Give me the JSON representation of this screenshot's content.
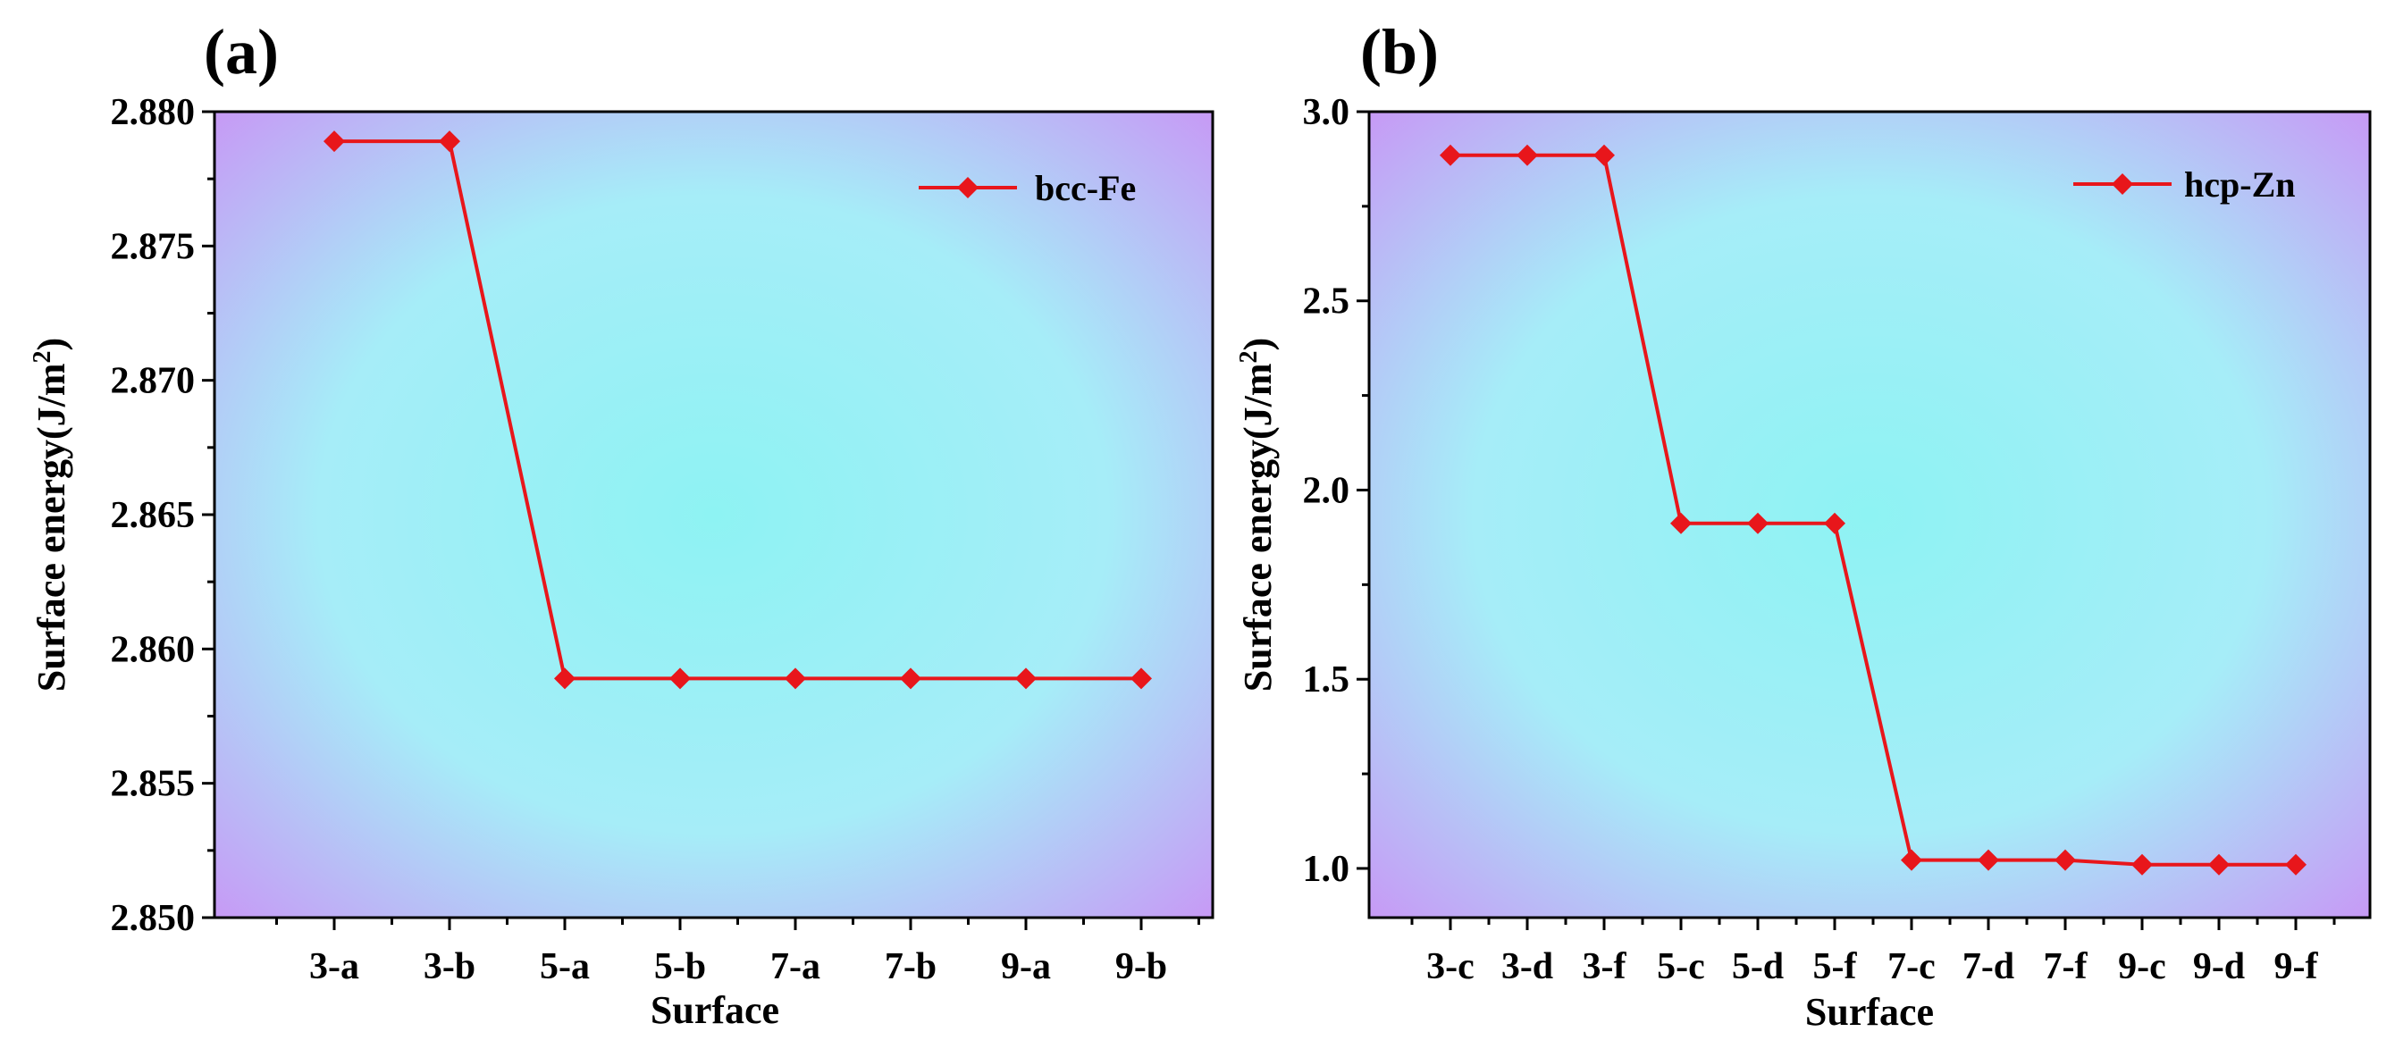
{
  "chart_data": [
    {
      "panel": "(a)",
      "type": "line",
      "categories": [
        "3-a",
        "3-b",
        "5-a",
        "5-b",
        "7-a",
        "7-b",
        "9-a",
        "9-b"
      ],
      "series": [
        {
          "name": "bcc-Fe",
          "color": "#e8161b",
          "marker": "diamond",
          "values": [
            2.8789,
            2.8789,
            2.8589,
            2.8589,
            2.8589,
            2.8589,
            2.8589,
            2.8589
          ]
        }
      ],
      "xlabel": "Surface",
      "ylabel_prefix": "Surface energy(J/m",
      "ylabel_sup": "2",
      "ylabel_suffix": ")",
      "ylim": [
        2.85,
        2.88
      ],
      "yticks": [
        2.85,
        2.855,
        2.86,
        2.865,
        2.87,
        2.875,
        2.88
      ],
      "ytick_labels": [
        "2.850",
        "2.855",
        "2.860",
        "2.865",
        "2.870",
        "2.875",
        "2.880"
      ],
      "legend_position": "top-right",
      "background": {
        "corner_color": "#c896f5",
        "center_color": "#8ef3f3"
      }
    },
    {
      "panel": "(b)",
      "type": "line",
      "categories": [
        "3-c",
        "3-d",
        "3-f",
        "5-c",
        "5-d",
        "5-f",
        "7-c",
        "7-d",
        "7-f",
        "9-c",
        "9-d",
        "9-f"
      ],
      "series": [
        {
          "name": "hcp-Zn",
          "color": "#e8161b",
          "marker": "diamond",
          "values": [
            2.885,
            2.885,
            2.885,
            1.912,
            1.912,
            1.912,
            1.022,
            1.022,
            1.022,
            1.01,
            1.01,
            1.01
          ]
        }
      ],
      "xlabel": "Surface",
      "ylabel_prefix": "Surface energy(J/m",
      "ylabel_sup": "2",
      "ylabel_suffix": ")",
      "ylim": [
        0.87,
        3.0
      ],
      "yticks": [
        1.0,
        1.5,
        2.0,
        2.5,
        3.0
      ],
      "ytick_labels": [
        "1.0",
        "1.5",
        "2.0",
        "2.5",
        "3.0"
      ],
      "legend_position": "top-right",
      "background": {
        "corner_color": "#c896f5",
        "center_color": "#8ef3f3"
      }
    }
  ]
}
